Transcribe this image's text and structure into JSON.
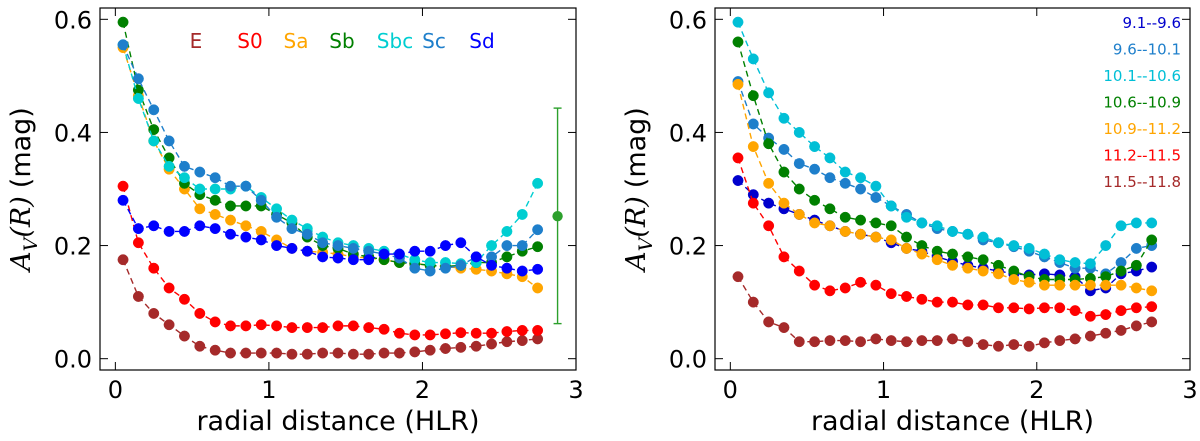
{
  "chart_data": [
    {
      "type": "line",
      "panel": "left",
      "title": "",
      "xlabel": "radial distance (HLR)",
      "ylabel": "A_V(R) (mag)",
      "ylabel_parts": {
        "math": "A",
        "sub": "V",
        "arg": "(R)",
        "unit": "(mag)"
      },
      "xlim": [
        -0.1,
        3.0
      ],
      "ylim": [
        -0.02,
        0.62
      ],
      "xticks": [
        "0",
        "1",
        "2",
        "3"
      ],
      "yticks": [
        "0.0",
        "0.2",
        "0.4",
        "0.6"
      ],
      "legend_position": "top-center",
      "x": [
        0.05,
        0.15,
        0.25,
        0.35,
        0.45,
        0.55,
        0.65,
        0.75,
        0.85,
        0.95,
        1.05,
        1.15,
        1.25,
        1.35,
        1.45,
        1.55,
        1.65,
        1.75,
        1.85,
        1.95,
        2.05,
        2.15,
        2.25,
        2.35,
        2.45,
        2.55,
        2.65,
        2.75
      ],
      "series": [
        {
          "name": "E",
          "color": "#a52a2a",
          "values": [
            0.175,
            0.11,
            0.08,
            0.06,
            0.04,
            0.022,
            0.015,
            0.01,
            0.01,
            0.01,
            0.01,
            0.008,
            0.008,
            0.01,
            0.01,
            0.008,
            0.008,
            0.01,
            0.01,
            0.012,
            0.015,
            0.018,
            0.02,
            0.022,
            0.026,
            0.03,
            0.032,
            0.035
          ]
        },
        {
          "name": "S0",
          "color": "#ff0000",
          "values": [
            0.305,
            0.205,
            0.16,
            0.125,
            0.105,
            0.08,
            0.065,
            0.058,
            0.058,
            0.06,
            0.058,
            0.055,
            0.055,
            0.055,
            0.058,
            0.058,
            0.055,
            0.052,
            0.045,
            0.042,
            0.042,
            0.044,
            0.046,
            0.045,
            0.045,
            0.048,
            0.05,
            0.05
          ]
        },
        {
          "name": "Sa",
          "color": "#ffa500",
          "values": [
            0.55,
            0.465,
            0.385,
            0.335,
            0.3,
            0.265,
            0.255,
            0.245,
            0.235,
            0.225,
            0.21,
            0.195,
            0.19,
            0.188,
            0.185,
            0.18,
            0.178,
            0.175,
            0.17,
            0.168,
            0.165,
            0.163,
            0.16,
            0.158,
            0.155,
            0.15,
            0.145,
            0.125
          ]
        },
        {
          "name": "Sb",
          "color": "#008000",
          "values": [
            0.595,
            0.475,
            0.405,
            0.355,
            0.31,
            0.29,
            0.28,
            0.27,
            0.27,
            0.27,
            0.255,
            0.24,
            0.215,
            0.2,
            0.195,
            0.185,
            0.18,
            0.175,
            0.17,
            0.168,
            0.165,
            0.163,
            0.165,
            0.17,
            0.17,
            0.18,
            0.19,
            0.198
          ]
        },
        {
          "name": "Sbc",
          "color": "#00ced1",
          "values": [
            0.555,
            0.46,
            0.385,
            0.34,
            0.32,
            0.3,
            0.3,
            0.3,
            0.305,
            0.285,
            0.265,
            0.245,
            0.23,
            0.215,
            0.205,
            0.2,
            0.195,
            0.19,
            0.185,
            0.175,
            0.17,
            0.17,
            0.168,
            0.17,
            0.2,
            0.225,
            0.255,
            0.31
          ]
        },
        {
          "name": "Sc",
          "color": "#1e7fcb",
          "values": [
            0.555,
            0.495,
            0.44,
            0.385,
            0.34,
            0.33,
            0.32,
            0.305,
            0.305,
            0.28,
            0.25,
            0.23,
            0.22,
            0.205,
            0.2,
            0.195,
            0.19,
            0.185,
            0.178,
            0.16,
            0.155,
            0.16,
            0.165,
            0.18,
            0.18,
            0.2,
            0.2,
            0.228
          ]
        },
        {
          "name": "Sd",
          "color": "#0000ff",
          "values": [
            0.28,
            0.23,
            0.235,
            0.225,
            0.225,
            0.235,
            0.23,
            0.22,
            0.215,
            0.21,
            0.2,
            0.195,
            0.19,
            0.18,
            0.178,
            0.175,
            0.175,
            0.185,
            0.185,
            0.19,
            0.19,
            0.2,
            0.205,
            0.18,
            0.165,
            0.16,
            0.155,
            0.158
          ]
        }
      ],
      "errorbar": {
        "x": 2.88,
        "y": 0.252,
        "yerr_low": 0.062,
        "yerr_high": 0.443,
        "color": "#2ca02c"
      }
    },
    {
      "type": "line",
      "panel": "right",
      "title": "",
      "xlabel": "radial distance (HLR)",
      "ylabel": "A_V(R) (mag)",
      "ylabel_parts": {
        "math": "A",
        "sub": "V",
        "arg": "(R)",
        "unit": "(mag)"
      },
      "xlim": [
        -0.1,
        3.0
      ],
      "ylim": [
        -0.02,
        0.62
      ],
      "xticks": [
        "0",
        "1",
        "2",
        "3"
      ],
      "yticks": [
        "0.0",
        "0.2",
        "0.4",
        "0.6"
      ],
      "legend_position": "top-right",
      "x": [
        0.05,
        0.15,
        0.25,
        0.35,
        0.45,
        0.55,
        0.65,
        0.75,
        0.85,
        0.95,
        1.05,
        1.15,
        1.25,
        1.35,
        1.45,
        1.55,
        1.65,
        1.75,
        1.85,
        1.95,
        2.05,
        2.15,
        2.25,
        2.35,
        2.45,
        2.55,
        2.65,
        2.75
      ],
      "series": [
        {
          "name": "9.1--9.6",
          "color": "#0000cd",
          "values": [
            0.315,
            0.29,
            0.275,
            0.265,
            0.255,
            0.245,
            0.235,
            0.225,
            0.22,
            0.215,
            0.205,
            0.195,
            0.19,
            0.18,
            0.172,
            0.165,
            0.16,
            0.155,
            0.15,
            0.148,
            0.15,
            0.148,
            0.145,
            0.12,
            0.125,
            0.15,
            0.155,
            0.162
          ]
        },
        {
          "name": "9.6--10.1",
          "color": "#1e7fcb",
          "values": [
            0.49,
            0.415,
            0.39,
            0.37,
            0.345,
            0.335,
            0.32,
            0.31,
            0.3,
            0.285,
            0.27,
            0.255,
            0.24,
            0.23,
            0.225,
            0.22,
            0.21,
            0.205,
            0.198,
            0.19,
            0.18,
            0.17,
            0.16,
            0.16,
            0.15,
            0.17,
            0.195,
            0.2
          ]
        },
        {
          "name": "10.1--10.6",
          "color": "#00bfd6",
          "values": [
            0.595,
            0.53,
            0.47,
            0.425,
            0.4,
            0.375,
            0.355,
            0.33,
            0.32,
            0.305,
            0.27,
            0.25,
            0.24,
            0.235,
            0.225,
            0.22,
            0.215,
            0.205,
            0.2,
            0.195,
            0.185,
            0.175,
            0.17,
            0.168,
            0.2,
            0.235,
            0.24,
            0.24
          ]
        },
        {
          "name": "10.6--10.9",
          "color": "#008000",
          "values": [
            0.56,
            0.465,
            0.38,
            0.33,
            0.3,
            0.28,
            0.265,
            0.25,
            0.245,
            0.24,
            0.235,
            0.215,
            0.2,
            0.19,
            0.185,
            0.18,
            0.175,
            0.165,
            0.155,
            0.145,
            0.14,
            0.14,
            0.14,
            0.142,
            0.145,
            0.155,
            0.165,
            0.21
          ]
        },
        {
          "name": "10.9--11.2",
          "color": "#ffa500",
          "values": [
            0.485,
            0.375,
            0.31,
            0.275,
            0.255,
            0.24,
            0.235,
            0.225,
            0.22,
            0.215,
            0.21,
            0.195,
            0.185,
            0.175,
            0.165,
            0.16,
            0.155,
            0.15,
            0.14,
            0.135,
            0.13,
            0.13,
            0.13,
            0.13,
            0.13,
            0.13,
            0.125,
            0.12
          ]
        },
        {
          "name": "11.2--11.5",
          "color": "#ff0000",
          "values": [
            0.355,
            0.275,
            0.235,
            0.18,
            0.155,
            0.13,
            0.12,
            0.125,
            0.135,
            0.13,
            0.115,
            0.11,
            0.105,
            0.1,
            0.1,
            0.095,
            0.095,
            0.09,
            0.09,
            0.088,
            0.09,
            0.09,
            0.085,
            0.075,
            0.078,
            0.085,
            0.09,
            0.092
          ]
        },
        {
          "name": "11.5--11.8",
          "color": "#a52a2a",
          "values": [
            0.145,
            0.1,
            0.065,
            0.055,
            0.03,
            0.03,
            0.032,
            0.032,
            0.03,
            0.035,
            0.032,
            0.03,
            0.032,
            0.032,
            0.035,
            0.03,
            0.025,
            0.022,
            0.025,
            0.022,
            0.028,
            0.032,
            0.035,
            0.04,
            0.045,
            0.05,
            0.058,
            0.065
          ]
        }
      ]
    }
  ]
}
